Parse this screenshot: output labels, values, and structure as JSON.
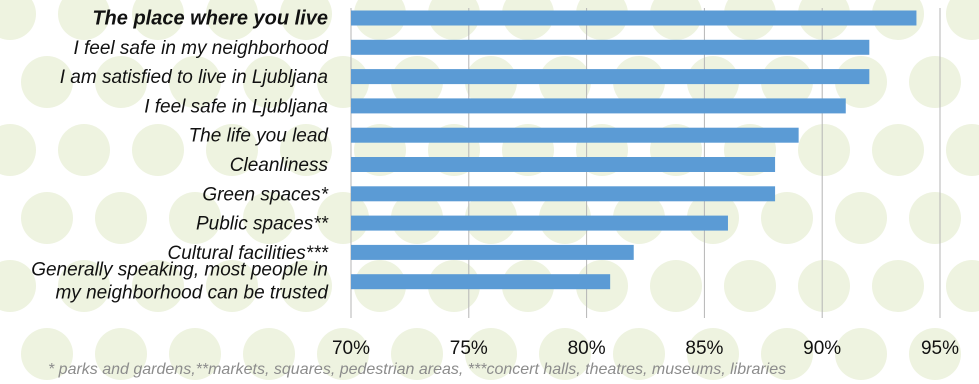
{
  "chart_data": {
    "type": "bar",
    "orientation": "horizontal",
    "categories": [
      [
        "The place where you live"
      ],
      [
        "I feel safe in my neighborhood"
      ],
      [
        "I am satisfied to live in Ljubljana"
      ],
      [
        "I feel safe in Ljubljana"
      ],
      [
        "The life you lead"
      ],
      [
        "Cleanliness"
      ],
      [
        "Green spaces*"
      ],
      [
        "Public spaces**"
      ],
      [
        "Cultural facilities***"
      ],
      [
        "Generally speaking, most people in",
        "my neighborhood can be trusted"
      ]
    ],
    "values": [
      94,
      92,
      92,
      91,
      89,
      88,
      88,
      86,
      82,
      81
    ],
    "highlighted_category_index": 0,
    "xlim": [
      70,
      95
    ],
    "xticks": [
      "70%",
      "75%",
      "80%",
      "85%",
      "90%",
      "95%"
    ],
    "xtick_values": [
      70,
      75,
      80,
      85,
      90,
      95
    ],
    "grid": true,
    "bar_color": "#5b9bd5",
    "grid_color": "#b5b5b5"
  },
  "footnote": "* parks and gardens,**markets, squares, pedestrian areas, ***concert halls, theatres, museums, libraries",
  "background": {
    "circle_color": "#eef3e0",
    "icons": [
      "walker-icon",
      "tree-icon",
      "bench-icon",
      "sun-umbrella-icon",
      "book-icon",
      "bus-icon",
      "bicycle-icon",
      "leaf-icon"
    ]
  }
}
